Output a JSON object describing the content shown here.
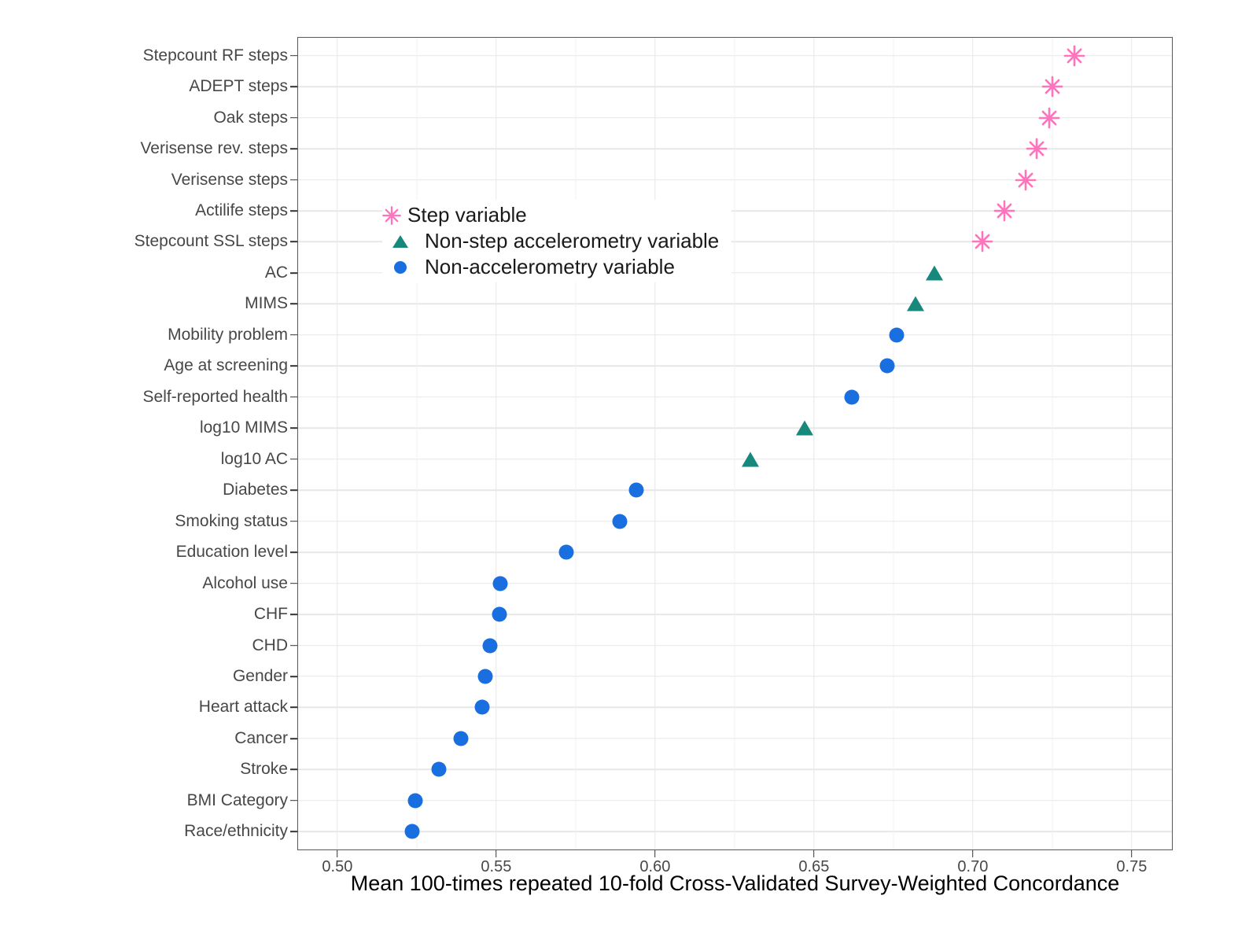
{
  "figure": {
    "background": "#FFFFFF"
  },
  "chart_data": {
    "type": "scatter",
    "subtype": "horizontal-dot-plot",
    "title": "",
    "xlabel": "Mean 100-times repeated 10-fold Cross-Validated Survey-Weighted Concordance",
    "ylabel": "",
    "xlim": [
      0.4874,
      0.7629
    ],
    "x_major_ticks": [
      0.5,
      0.55,
      0.6,
      0.65,
      0.7,
      0.75
    ],
    "x_tick_labels": [
      "0.50",
      "0.55",
      "0.60",
      "0.65",
      "0.70",
      "0.75"
    ],
    "x_minor_ticks": [
      0.525,
      0.575,
      0.625,
      0.675,
      0.725
    ],
    "grid": true,
    "legend_position": "inside-upper-left",
    "panel_border_color": "#595959",
    "gridline_color": "#E7E7E7",
    "axis_text_color": "#474747",
    "groups": [
      {
        "id": "step",
        "label": "Step variable",
        "color": "#FF74BC",
        "marker": "asterisk"
      },
      {
        "id": "nonstep-accel",
        "label": "Non-step accelerometry variable",
        "color": "#17897C",
        "marker": "triangle"
      },
      {
        "id": "non-accel",
        "label": "Non-accelerometry variable",
        "color": "#1A6FE0",
        "marker": "circle"
      }
    ],
    "points": [
      {
        "category": "Stepcount RF steps",
        "value": 0.732,
        "group": "step"
      },
      {
        "category": "ADEPT steps",
        "value": 0.725,
        "group": "step"
      },
      {
        "category": "Oak steps",
        "value": 0.724,
        "group": "step"
      },
      {
        "category": "Verisense rev. steps",
        "value": 0.72,
        "group": "step"
      },
      {
        "category": "Verisense steps",
        "value": 0.7165,
        "group": "step"
      },
      {
        "category": "Actilife steps",
        "value": 0.71,
        "group": "step"
      },
      {
        "category": "Stepcount SSL steps",
        "value": 0.703,
        "group": "step"
      },
      {
        "category": "AC",
        "value": 0.688,
        "group": "nonstep-accel"
      },
      {
        "category": "MIMS",
        "value": 0.682,
        "group": "nonstep-accel"
      },
      {
        "category": "Mobility problem",
        "value": 0.676,
        "group": "non-accel"
      },
      {
        "category": "Age at screening",
        "value": 0.673,
        "group": "non-accel"
      },
      {
        "category": "Self-reported health",
        "value": 0.662,
        "group": "non-accel"
      },
      {
        "category": "log10 MIMS",
        "value": 0.647,
        "group": "nonstep-accel"
      },
      {
        "category": "log10 AC",
        "value": 0.63,
        "group": "nonstep-accel"
      },
      {
        "category": "Diabetes",
        "value": 0.594,
        "group": "non-accel"
      },
      {
        "category": "Smoking status",
        "value": 0.589,
        "group": "non-accel"
      },
      {
        "category": "Education level",
        "value": 0.572,
        "group": "non-accel"
      },
      {
        "category": "Alcohol use",
        "value": 0.5512,
        "group": "non-accel"
      },
      {
        "category": "CHF",
        "value": 0.551,
        "group": "non-accel"
      },
      {
        "category": "CHD",
        "value": 0.548,
        "group": "non-accel"
      },
      {
        "category": "Gender",
        "value": 0.5465,
        "group": "non-accel"
      },
      {
        "category": "Heart attack",
        "value": 0.5455,
        "group": "non-accel"
      },
      {
        "category": "Cancer",
        "value": 0.539,
        "group": "non-accel"
      },
      {
        "category": "Stroke",
        "value": 0.532,
        "group": "non-accel"
      },
      {
        "category": "BMI Category",
        "value": 0.5245,
        "group": "non-accel"
      },
      {
        "category": "Race/ethnicity",
        "value": 0.5235,
        "group": "non-accel"
      }
    ]
  }
}
